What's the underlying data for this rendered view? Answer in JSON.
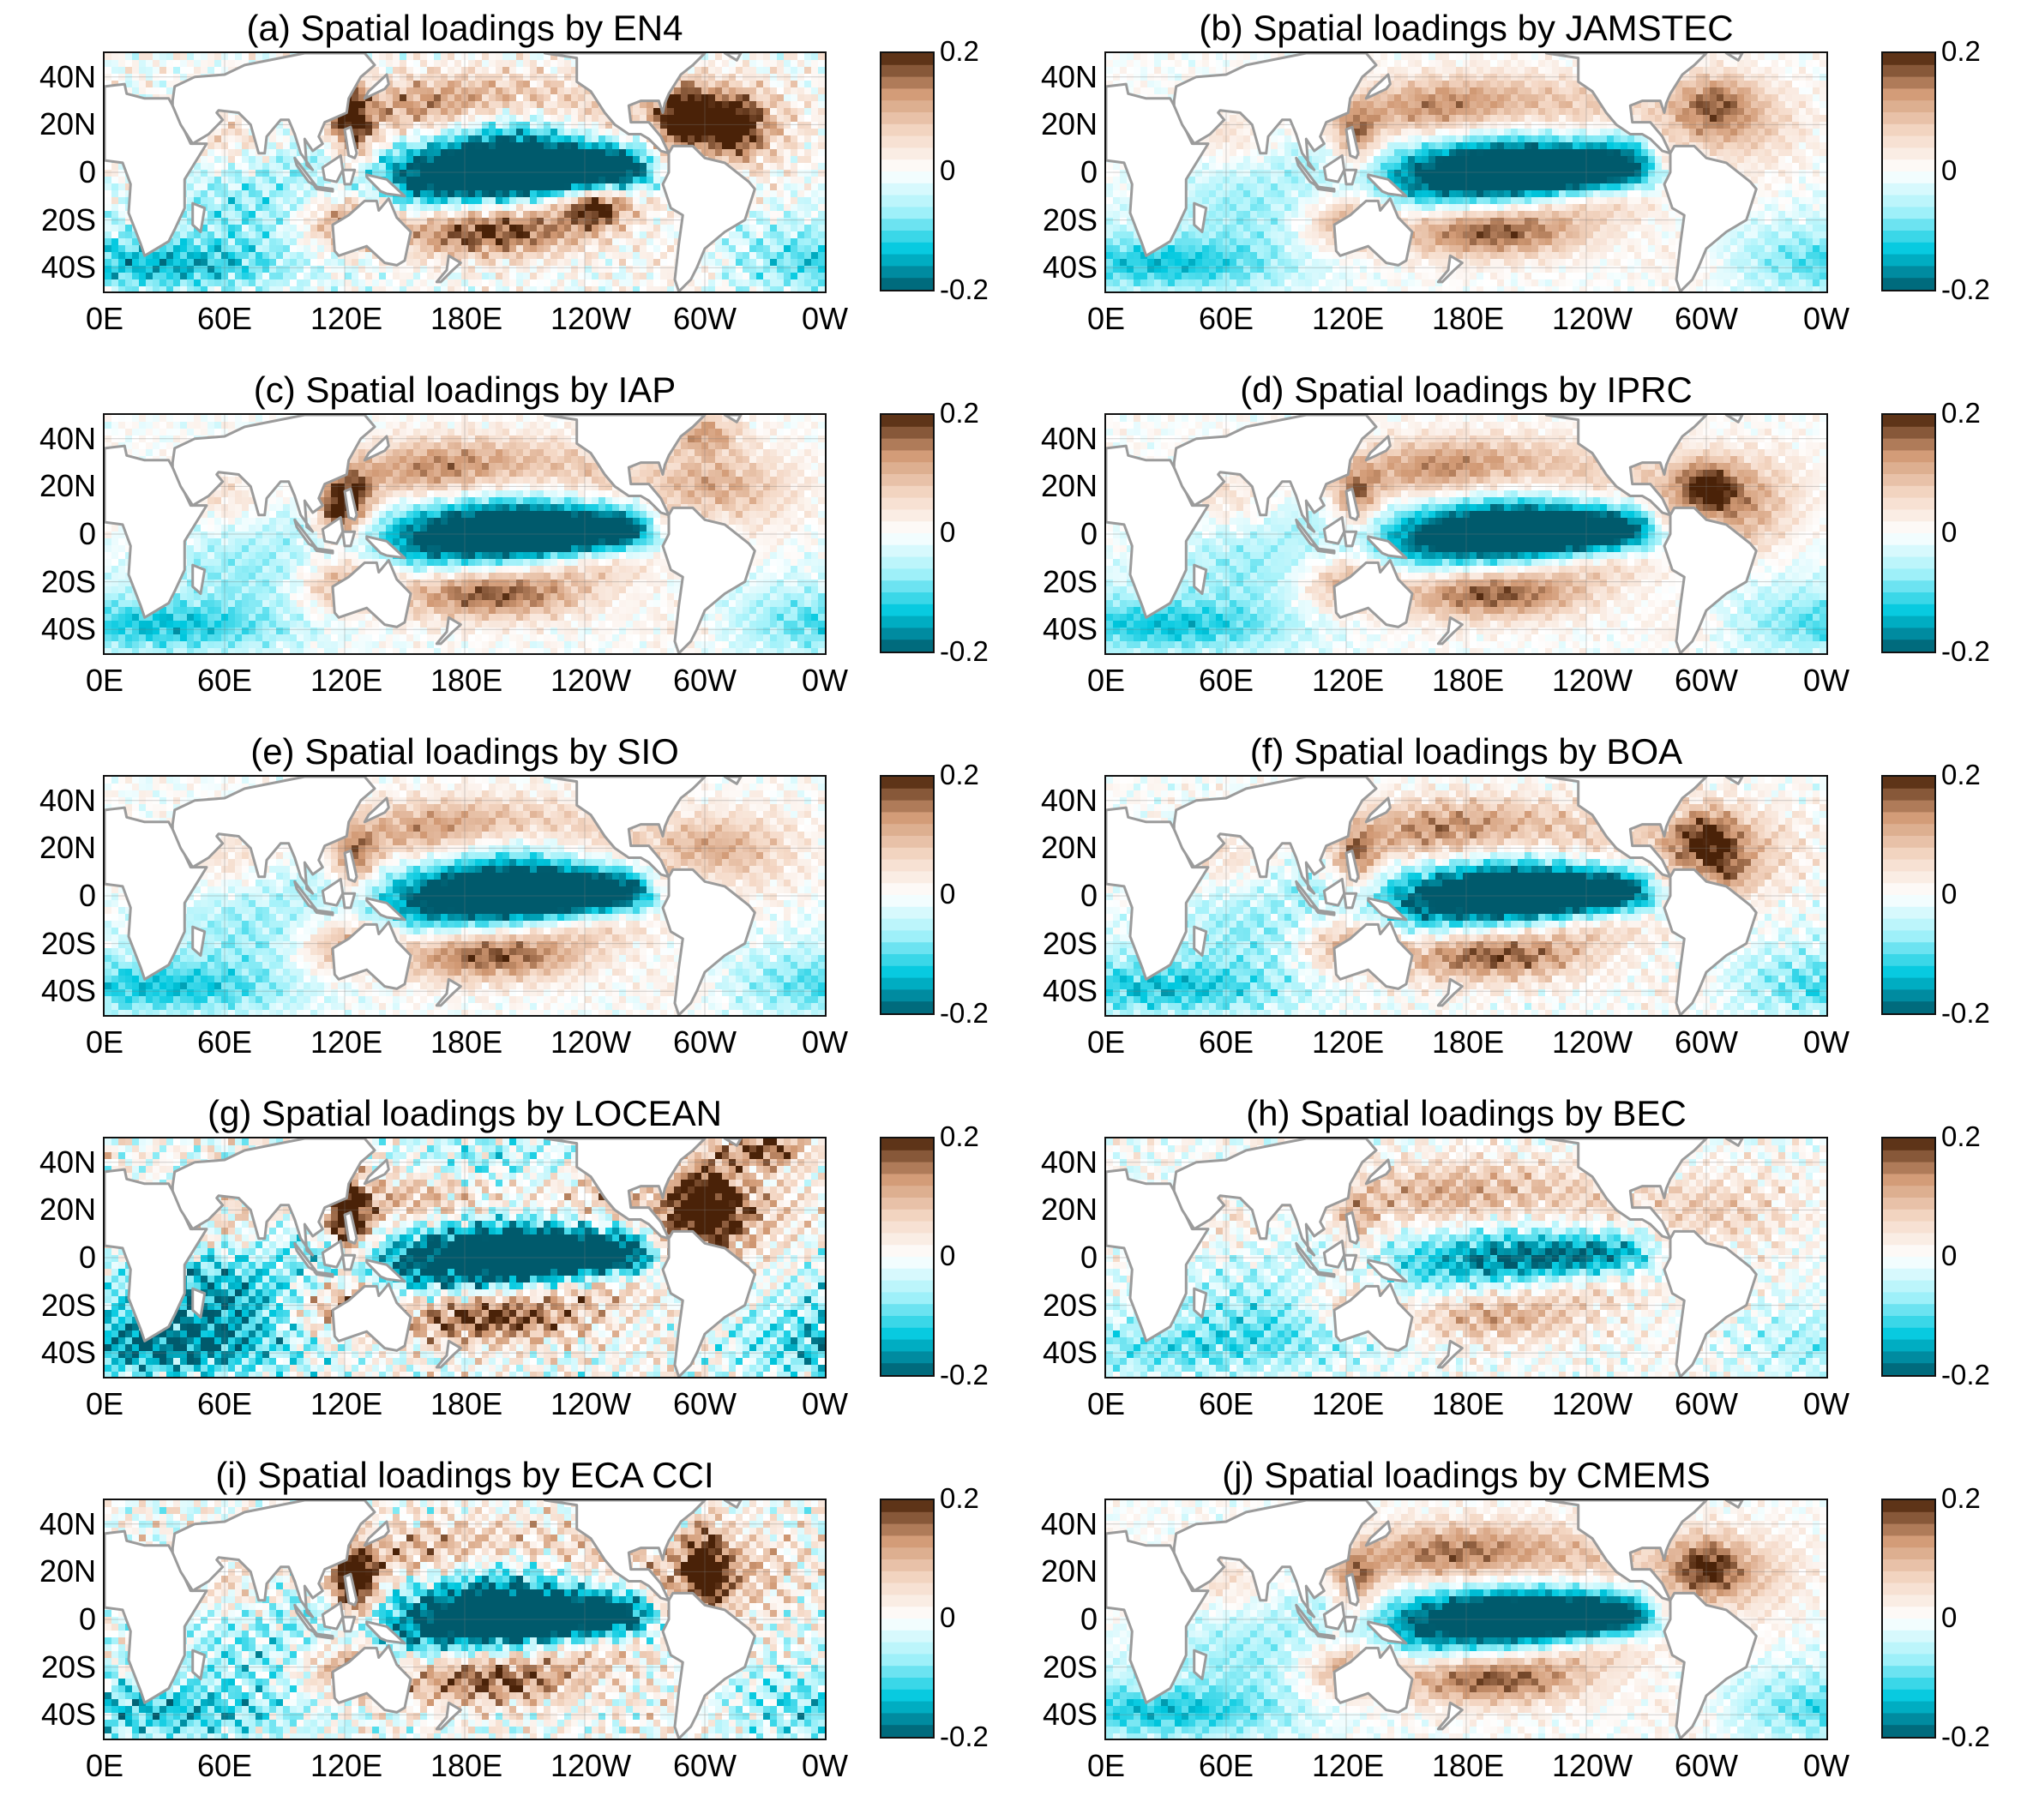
{
  "figure": {
    "colormap": {
      "name": "brown-white-cyan diverging",
      "min": -0.2,
      "max": 0.2,
      "min_label": "-0.2",
      "mid_label": "0",
      "max_label": "0.2",
      "colors": [
        "#005a6c",
        "#00c8df",
        "#a6f2fa",
        "#ffffff",
        "#f4d7c4",
        "#d19974",
        "#4a2208"
      ]
    },
    "land_color": "#ffffff",
    "coast_color": "#9b9b9b",
    "lat_labels": [
      "40N",
      "20N",
      "0",
      "20S",
      "40S"
    ],
    "lon_labels": [
      "0E",
      "60E",
      "120E",
      "180E",
      "120W",
      "60W",
      "0W"
    ],
    "panels": [
      {
        "title": "(a) Spatial loadings by EN4"
      },
      {
        "title": "(b) Spatial loadings by JAMSTEC"
      },
      {
        "title": "(c) Spatial loadings by IAP"
      },
      {
        "title": "(d) Spatial loadings by IPRC"
      },
      {
        "title": "(e) Spatial loadings by SIO"
      },
      {
        "title": "(f) Spatial loadings by BOA"
      },
      {
        "title": "(g) Spatial loadings by LOCEAN"
      },
      {
        "title": "(h) Spatial loadings by BEC"
      },
      {
        "title": "(i) Spatial loadings by ECA CCI"
      },
      {
        "title": "(j) Spatial loadings by CMEMS"
      }
    ]
  }
}
